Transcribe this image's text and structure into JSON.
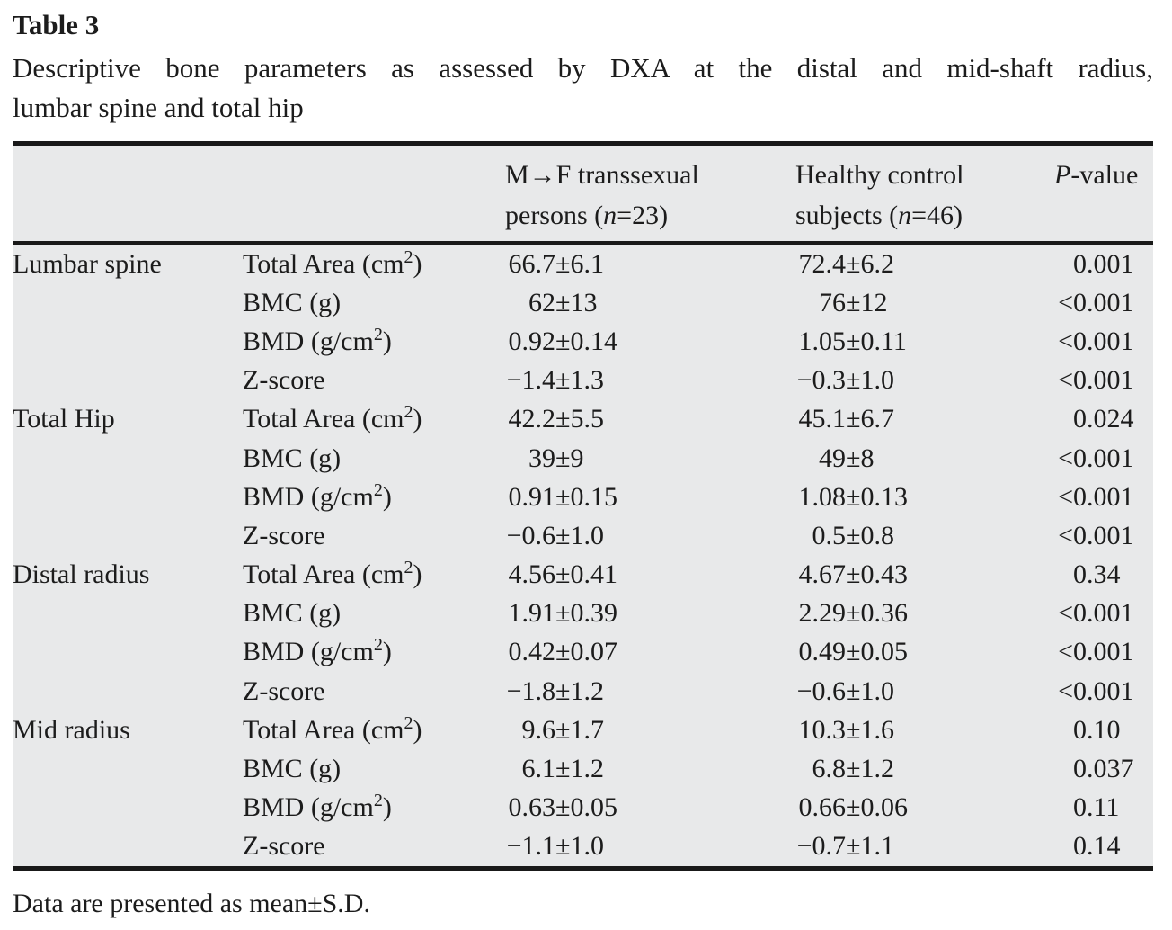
{
  "table_label": "Table 3",
  "caption_line1": "Descriptive bone parameters as assessed by DXA at the distal and mid-shaft radius,",
  "caption_line2": "lumbar spine and total hip",
  "header": {
    "group1": {
      "line1": "M→F transsexual",
      "line2_pre": "persons (",
      "n_var": "n",
      "line2_post": "=23)"
    },
    "group2": {
      "line1": "Healthy control",
      "line2_pre": "subjects (",
      "n_var": "n",
      "line2_post": "=46)"
    },
    "pvalue": {
      "var": "P",
      "rest": "-value"
    }
  },
  "sections": [
    {
      "region": "Lumbar spine",
      "rows": [
        {
          "parameter": "Total Area (cm²)",
          "group1": "66.7±6.1",
          "group2": "72.4±6.2",
          "p": "0.001"
        },
        {
          "parameter": "BMC (g)",
          "group1": "62±13",
          "group2": "76±12",
          "p": "<0.001"
        },
        {
          "parameter": "BMD (g/cm²)",
          "group1": "0.92±0.14",
          "group2": "1.05±0.11",
          "p": "<0.001"
        },
        {
          "parameter": "Z-score",
          "group1": "−1.4±1.3",
          "group2": "−0.3±1.0",
          "p": "<0.001"
        }
      ]
    },
    {
      "region": "Total Hip",
      "rows": [
        {
          "parameter": "Total Area (cm²)",
          "group1": "42.2±5.5",
          "group2": "45.1±6.7",
          "p": "0.024"
        },
        {
          "parameter": "BMC (g)",
          "group1": "39±9",
          "group2": "49±8",
          "p": "<0.001"
        },
        {
          "parameter": "BMD (g/cm²)",
          "group1": "0.91±0.15",
          "group2": "1.08±0.13",
          "p": "<0.001"
        },
        {
          "parameter": "Z-score",
          "group1": "−0.6±1.0",
          "group2": "0.5±0.8",
          "p": "<0.001"
        }
      ]
    },
    {
      "region": "Distal radius",
      "rows": [
        {
          "parameter": "Total Area (cm²)",
          "group1": "4.56±0.41",
          "group2": "4.67±0.43",
          "p": "0.34"
        },
        {
          "parameter": "BMC (g)",
          "group1": "1.91±0.39",
          "group2": "2.29±0.36",
          "p": "<0.001"
        },
        {
          "parameter": "BMD (g/cm²)",
          "group1": "0.42±0.07",
          "group2": "0.49±0.05",
          "p": "<0.001"
        },
        {
          "parameter": "Z-score",
          "group1": "−1.8±1.2",
          "group2": "−0.6±1.0",
          "p": "<0.001"
        }
      ]
    },
    {
      "region": "Mid radius",
      "rows": [
        {
          "parameter": "Total Area (cm²)",
          "group1": "9.6±1.7",
          "group2": "10.3±1.6",
          "p": "0.10"
        },
        {
          "parameter": "BMC (g)",
          "group1": "6.1±1.2",
          "group2": "6.8±1.2",
          "p": "0.037"
        },
        {
          "parameter": "BMD (g/cm²)",
          "group1": "0.63±0.05",
          "group2": "0.66±0.06",
          "p": "0.11"
        },
        {
          "parameter": "Z-score",
          "group1": "−1.1±1.0",
          "group2": "−0.7±1.1",
          "p": "0.14"
        }
      ]
    }
  ],
  "footnote": "Data are presented as mean±S.D.",
  "colors": {
    "table_background": "#e8e9ea",
    "rule": "#191919",
    "text": "#1c1c1c",
    "page_background": "#ffffff"
  }
}
